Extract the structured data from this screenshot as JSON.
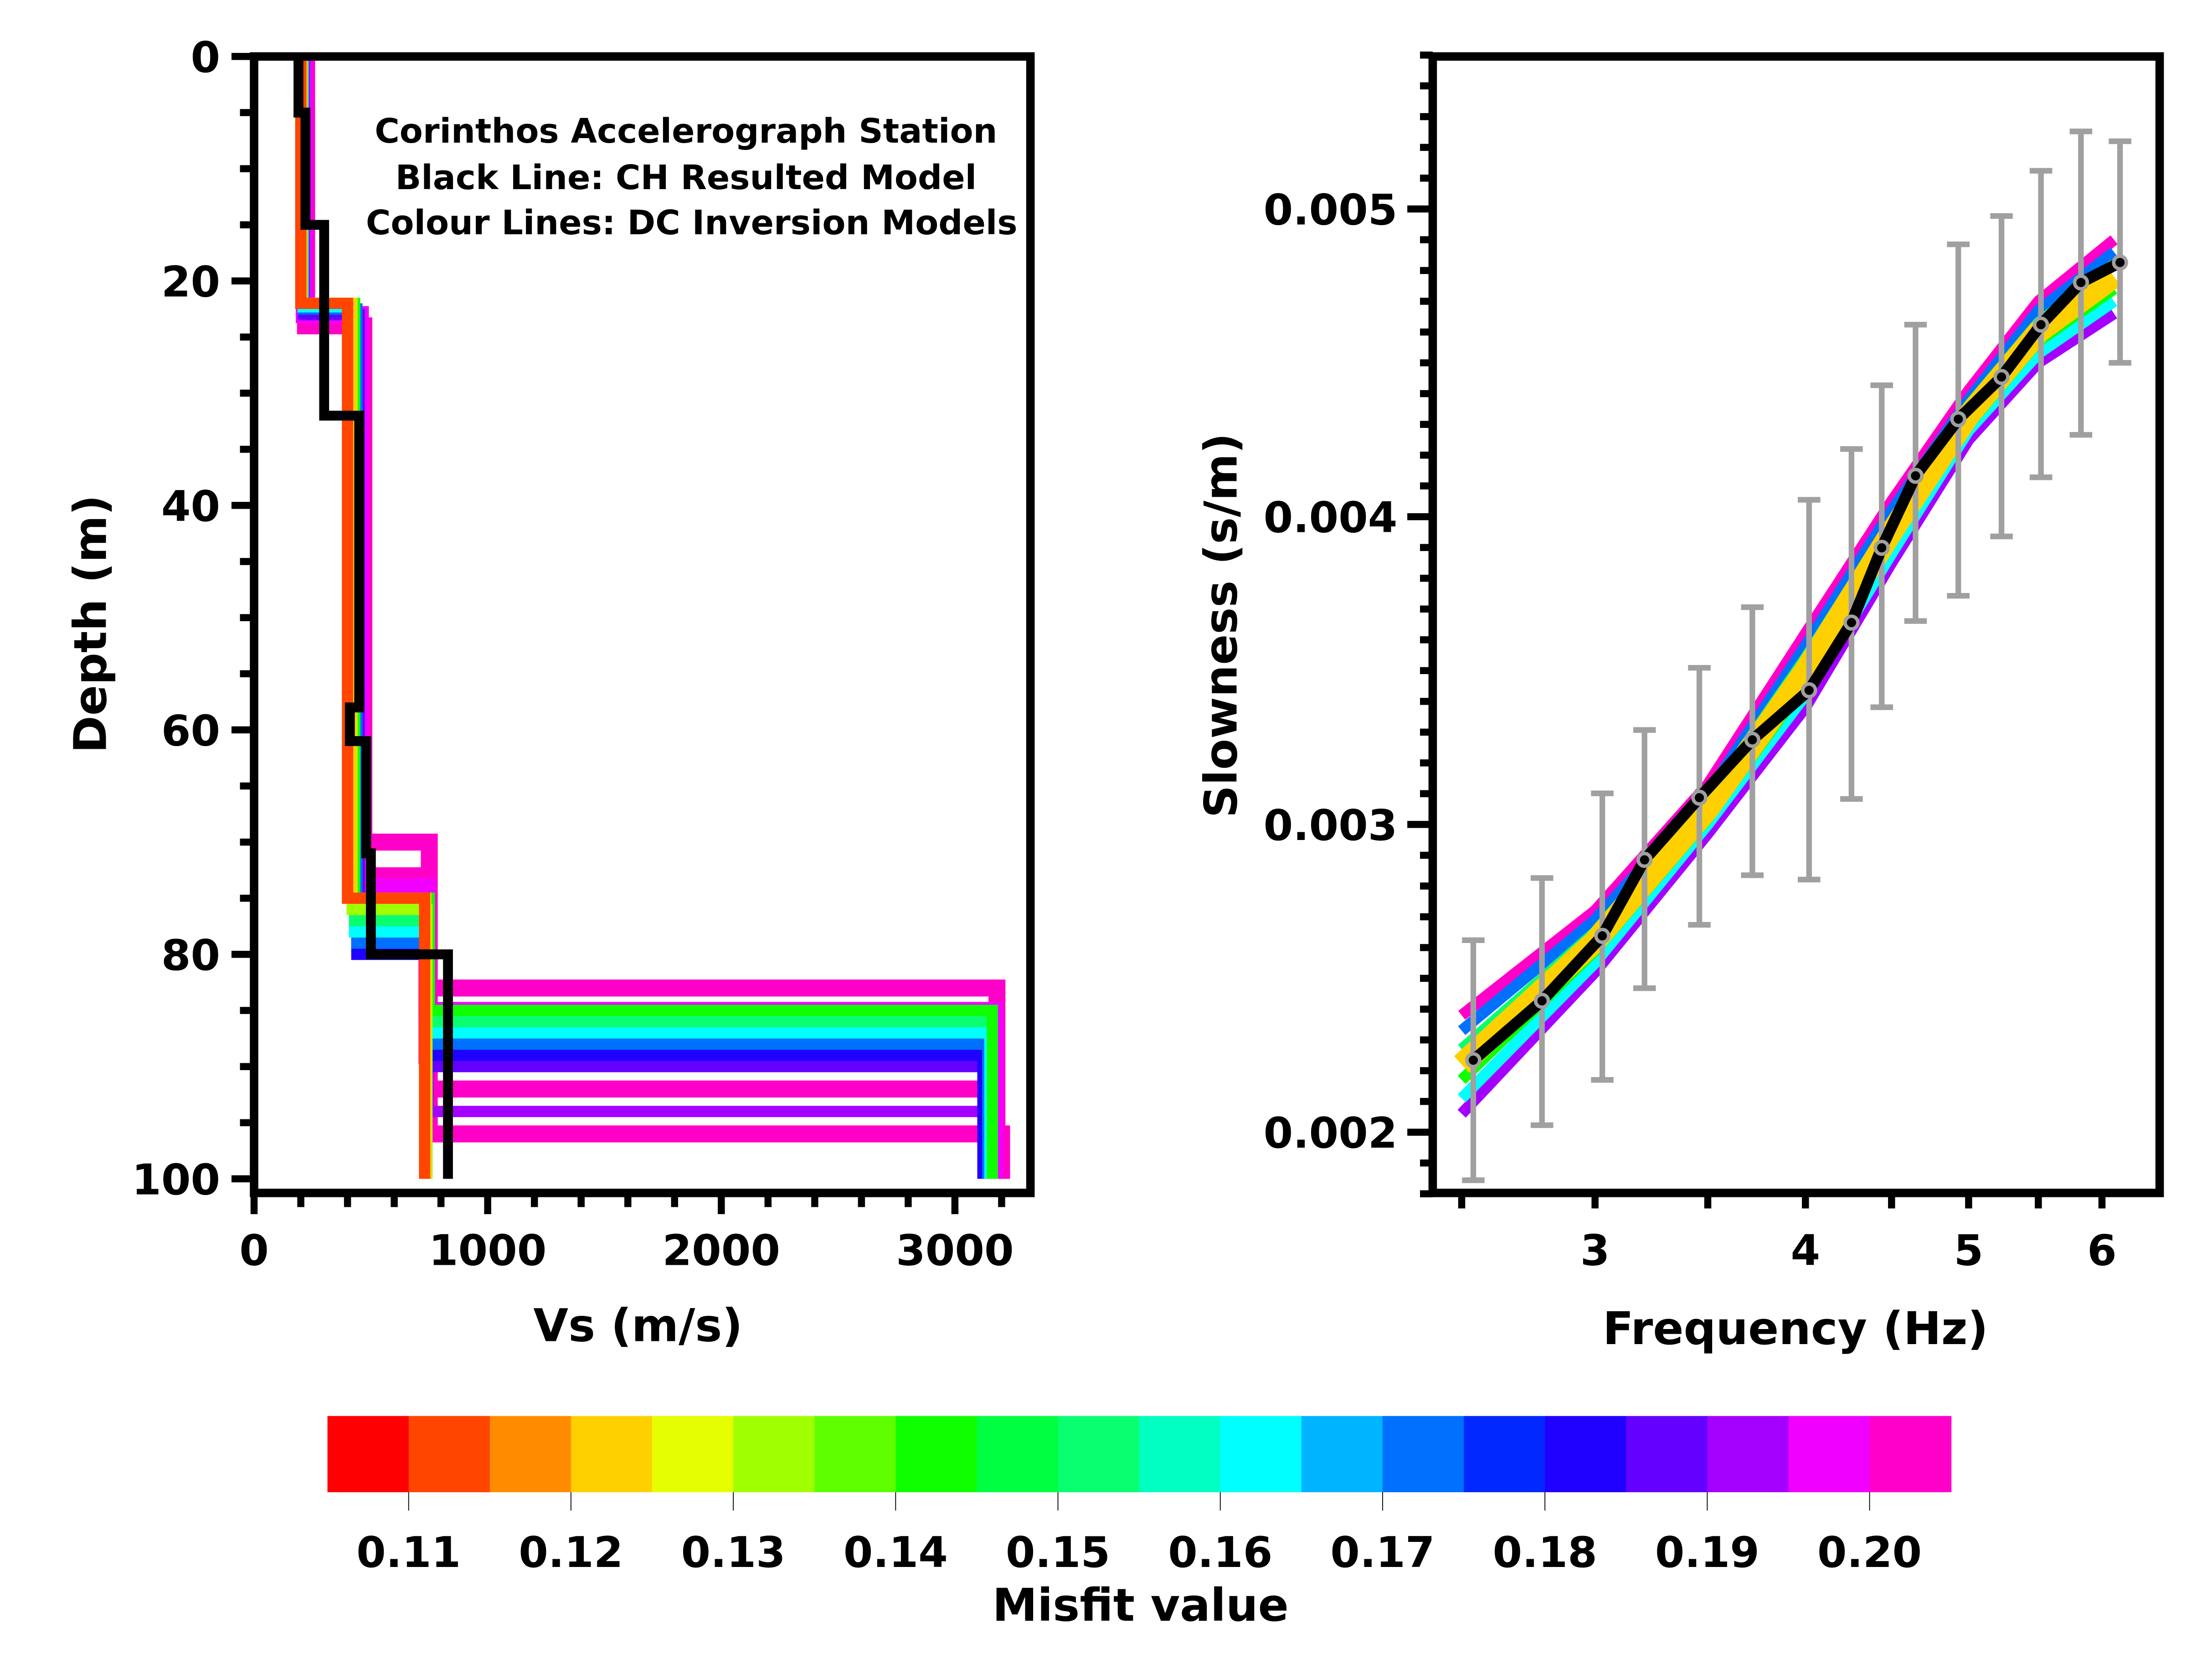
{
  "chart_data": [
    {
      "type": "line",
      "panel": "left",
      "annotation": [
        "Corinthos Accelerograph Station",
        "Black Line: CH Resulted Model",
        "Colour Lines: DC Inversion Models"
      ],
      "xlabel": "Vs (m/s)",
      "ylabel": "Depth (m)",
      "xlim": [
        0,
        3350
      ],
      "ylim": [
        100,
        0
      ],
      "y_inverted": true,
      "xticks": [
        0,
        1000,
        2000,
        3000
      ],
      "xtick_labels": [
        "0",
        "1000",
        "2000",
        "3000"
      ],
      "yticks": [
        0,
        20,
        40,
        60,
        80,
        100
      ],
      "ytick_labels": [
        "0",
        "20",
        "40",
        "60",
        "80",
        "100"
      ],
      "grid": false,
      "ch_model": {
        "name": "CH Resulted Model",
        "color": "#000000",
        "layers": [
          [
            190,
            5
          ],
          [
            220,
            15
          ],
          [
            300,
            32
          ],
          [
            450,
            58
          ],
          [
            410,
            61
          ],
          [
            480,
            71
          ],
          [
            500,
            80
          ],
          [
            830,
            100
          ]
        ]
      },
      "dc_models": [
        {
          "misfit": 0.2,
          "layers": [
            [
              225,
              24
            ],
            [
              470,
              70
            ],
            [
              750,
              96
            ],
            [
              3200,
              100
            ]
          ]
        },
        {
          "misfit": 0.2,
          "layers": [
            [
              220,
              24
            ],
            [
              460,
              73
            ],
            [
              740,
              83
            ],
            [
              3180,
              100
            ]
          ]
        },
        {
          "misfit": 0.2,
          "layers": [
            [
              220,
              23
            ],
            [
              455,
              74
            ],
            [
              745,
              92
            ],
            [
              3170,
              100
            ]
          ]
        },
        {
          "misfit": 0.2,
          "layers": [
            [
              215,
              23
            ],
            [
              455,
              75
            ],
            [
              740,
              89
            ],
            [
              3165,
              100
            ]
          ]
        },
        {
          "misfit": 0.195,
          "layers": [
            [
              215,
              23
            ],
            [
              455,
              74
            ],
            [
              740,
              85
            ],
            [
              3170,
              100
            ]
          ]
        },
        {
          "misfit": 0.19,
          "layers": [
            [
              215,
              23
            ],
            [
              450,
              76
            ],
            [
              745,
              94
            ],
            [
              3150,
              100
            ]
          ]
        },
        {
          "misfit": 0.185,
          "layers": [
            [
              212,
              23
            ],
            [
              450,
              78
            ],
            [
              740,
              90
            ],
            [
              3130,
              100
            ]
          ]
        },
        {
          "misfit": 0.18,
          "layers": [
            [
              210,
              22.5
            ],
            [
              440,
              80
            ],
            [
              740,
              89
            ],
            [
              3120,
              100
            ]
          ]
        },
        {
          "misfit": 0.17,
          "layers": [
            [
              210,
              22.5
            ],
            [
              440,
              79
            ],
            [
              740,
              88
            ],
            [
              3140,
              100
            ]
          ]
        },
        {
          "misfit": 0.16,
          "layers": [
            [
              210,
              22.3
            ],
            [
              430,
              78
            ],
            [
              745,
              87
            ],
            [
              3150,
              100
            ]
          ]
        },
        {
          "misfit": 0.15,
          "layers": [
            [
              208,
              22
            ],
            [
              430,
              77
            ],
            [
              750,
              86
            ],
            [
              3160,
              100
            ]
          ]
        },
        {
          "misfit": 0.14,
          "layers": [
            [
              205,
              22
            ],
            [
              430,
              75
            ],
            [
              750,
              85
            ],
            [
              3160,
              100
            ]
          ]
        },
        {
          "misfit": 0.13,
          "layers": [
            [
              205,
              22
            ],
            [
              420,
              76
            ],
            [
              740,
              100
            ]
          ]
        },
        {
          "misfit": 0.12,
          "layers": [
            [
              205,
              22
            ],
            [
              415,
              75
            ],
            [
              735,
              100
            ]
          ]
        },
        {
          "misfit": 0.11,
          "layers": [
            [
              200,
              22
            ],
            [
              400,
              75
            ],
            [
              730,
              100
            ]
          ]
        }
      ]
    },
    {
      "type": "line",
      "panel": "right",
      "xlabel": "Frequency (Hz)",
      "ylabel": "Slowness (s/m)",
      "x_scale": "log",
      "xlim": [
        2.45,
        6.5
      ],
      "ylim": [
        0.0018,
        0.0055
      ],
      "xticks": [
        3,
        4,
        5,
        6
      ],
      "xtick_labels": [
        "3",
        "4",
        "5",
        "6"
      ],
      "xminor_ticks": [
        2.5,
        3.5,
        4.5,
        5.5
      ],
      "yticks": [
        0.002,
        0.003,
        0.004,
        0.005
      ],
      "ytick_labels": [
        "0.002",
        "0.003",
        "0.004",
        "0.005"
      ],
      "grid": false,
      "observed": {
        "color": "#000000",
        "errorbar_color": "#a0a0a0",
        "frequency": [
          2.54,
          2.79,
          3.03,
          3.21,
          3.46,
          3.72,
          4.02,
          4.26,
          4.44,
          4.65,
          4.93,
          5.23,
          5.52,
          5.83,
          6.15
        ],
        "slowness": [
          0.002234,
          0.002427,
          0.002638,
          0.002885,
          0.003087,
          0.003275,
          0.003436,
          0.003656,
          0.003899,
          0.004133,
          0.004317,
          0.004454,
          0.004624,
          0.004761,
          0.004826
        ],
        "upper": [
          0.002624,
          0.002826,
          0.003101,
          0.003307,
          0.003509,
          0.003706,
          0.004055,
          0.00422,
          0.004427,
          0.004624,
          0.004885,
          0.004977,
          0.005124,
          0.005252,
          0.00522
        ],
        "lower": [
          0.001844,
          0.002023,
          0.00217,
          0.002468,
          0.002674,
          0.002835,
          0.002821,
          0.003083,
          0.003381,
          0.003661,
          0.003743,
          0.003936,
          0.004128,
          0.004266,
          0.0045
        ]
      },
      "dc_curves": {
        "frequency": [
          2.5,
          3.0,
          3.5,
          4.0,
          4.5,
          5.0,
          5.5,
          6.1
        ],
        "curves": [
          {
            "misfit": 0.2,
            "slowness": [
              0.00238,
              0.00272,
              0.00313,
              0.00362,
              0.00405,
              0.00441,
              0.0047,
              0.0049
            ]
          },
          {
            "misfit": 0.19,
            "slowness": [
              0.00206,
              0.00252,
              0.00297,
              0.00338,
              0.00385,
              0.00425,
              0.0045,
              0.00466
            ]
          },
          {
            "misfit": 0.17,
            "slowness": [
              0.00233,
              0.00269,
              0.0031,
              0.00358,
              0.00402,
              0.00438,
              0.00467,
              0.00486
            ]
          },
          {
            "misfit": 0.16,
            "slowness": [
              0.00211,
              0.00255,
              0.003,
              0.00342,
              0.00388,
              0.00428,
              0.00453,
              0.0047
            ]
          },
          {
            "misfit": 0.15,
            "slowness": [
              0.00227,
              0.00265,
              0.00308,
              0.00354,
              0.00398,
              0.00436,
              0.00463,
              0.00482
            ]
          },
          {
            "misfit": 0.14,
            "slowness": [
              0.00217,
              0.00259,
              0.00302,
              0.00346,
              0.00392,
              0.0043,
              0.00457,
              0.00474
            ]
          },
          {
            "misfit": 0.12,
            "slowness": [
              0.00222,
              0.00262,
              0.00305,
              0.0035,
              0.00395,
              0.00433,
              0.0046,
              0.00478
            ]
          }
        ]
      }
    }
  ],
  "colorbar": {
    "label": "Misfit value",
    "range": [
      0.105,
      0.205
    ],
    "ticks": [
      0.11,
      0.12,
      0.13,
      0.14,
      0.15,
      0.16,
      0.17,
      0.18,
      0.19,
      0.2
    ],
    "tick_labels": [
      "0.11",
      "0.12",
      "0.13",
      "0.14",
      "0.15",
      "0.16",
      "0.17",
      "0.18",
      "0.19",
      "0.20"
    ],
    "colors": [
      "#ff0000",
      "#ff4500",
      "#ff8c00",
      "#ffd000",
      "#e5ff00",
      "#a0ff00",
      "#60ff00",
      "#10ff00",
      "#00ff40",
      "#0aff70",
      "#00ffc0",
      "#00ffff",
      "#00b4ff",
      "#0070ff",
      "#0028ff",
      "#2000ff",
      "#6400ff",
      "#a400ff",
      "#f000ff",
      "#ff00c8"
    ]
  }
}
